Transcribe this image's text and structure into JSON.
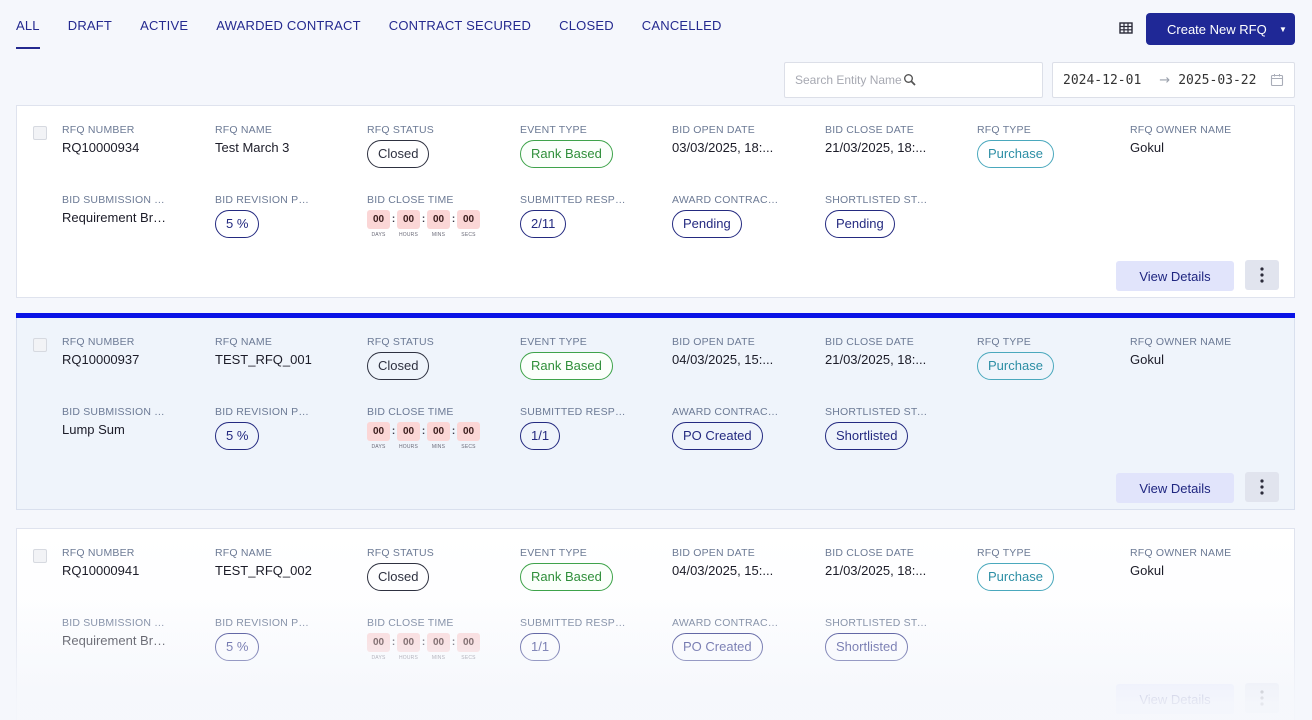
{
  "tabs": [
    {
      "label": "ALL",
      "active": true
    },
    {
      "label": "DRAFT",
      "active": false
    },
    {
      "label": "ACTIVE",
      "active": false
    },
    {
      "label": "AWARDED CONTRACT",
      "active": false
    },
    {
      "label": "CONTRACT SECURED",
      "active": false
    },
    {
      "label": "CLOSED",
      "active": false
    },
    {
      "label": "CANCELLED",
      "active": false
    }
  ],
  "toolbar": {
    "grid_icon": "table-grid-icon",
    "create_label": "Create New RFQ",
    "create_caret_icon": "caret-down-icon"
  },
  "filters": {
    "search_placeholder": "Search Entity Name",
    "search_value": "",
    "search_icon": "magnifier-icon",
    "date_from": "2024-12-01",
    "date_to": "2025-03-22",
    "date_arrow": "→",
    "calendar_icon": "calendar-icon"
  },
  "labels": {
    "rfq_number": "RFQ NUMBER",
    "rfq_name": "RFQ NAME",
    "rfq_status": "RFQ STATUS",
    "event_type": "EVENT TYPE",
    "bid_open_date": "BID OPEN DATE",
    "bid_close_date": "BID CLOSE DATE",
    "rfq_type": "RFQ TYPE",
    "rfq_owner_name": "RFQ OWNER NAME",
    "bid_submission": "BID SUBMISSION TYPE",
    "bid_revision": "BID REVISION PERCENTAGE",
    "bid_close_time": "BID CLOSE TIME",
    "submitted_responses": "SUBMITTED RESPONSES",
    "award_contract": "AWARD CONTRACT STATUS",
    "shortlisted": "SHORTLISTED STATUS",
    "timer_units": [
      "DAYS",
      "HOURS",
      "MINS",
      "SECS"
    ],
    "view_details": "View Details",
    "more_icon": "kebab-menu-icon"
  },
  "colors": {
    "primary": "#1f2896",
    "selected_bar": "#0a13e6",
    "green": "#2f8f3a",
    "teal": "#2c8ea5",
    "timer_bg": "#fbd6d6"
  },
  "rfqs": [
    {
      "rfq_number": "RQ10000934",
      "rfq_name": "Test March 3",
      "rfq_status": "Closed",
      "event_type": "Rank Based",
      "bid_open_date": "03/03/2025, 18:...",
      "bid_close_date": "21/03/2025, 18:...",
      "rfq_type": "Purchase",
      "rfq_owner_name": "Gokul",
      "bid_submission": "Requirement Bre...",
      "bid_revision": "5 %",
      "bid_close_time": [
        "00",
        "00",
        "00",
        "00"
      ],
      "submitted_responses": "2/11",
      "award_contract": "Pending",
      "shortlisted": "Pending"
    },
    {
      "rfq_number": "RQ10000937",
      "rfq_name": "TEST_RFQ_001",
      "rfq_status": "Closed",
      "event_type": "Rank Based",
      "bid_open_date": "04/03/2025, 15:...",
      "bid_close_date": "21/03/2025, 18:...",
      "rfq_type": "Purchase",
      "rfq_owner_name": "Gokul",
      "bid_submission": "Lump Sum",
      "bid_revision": "5 %",
      "bid_close_time": [
        "00",
        "00",
        "00",
        "00"
      ],
      "submitted_responses": "1/1",
      "award_contract": "PO Created",
      "shortlisted": "Shortlisted"
    },
    {
      "rfq_number": "RQ10000941",
      "rfq_name": "TEST_RFQ_002",
      "rfq_status": "Closed",
      "event_type": "Rank Based",
      "bid_open_date": "04/03/2025, 15:...",
      "bid_close_date": "21/03/2025, 18:...",
      "rfq_type": "Purchase",
      "rfq_owner_name": "Gokul",
      "bid_submission": "Requirement Bre...",
      "bid_revision": "5 %",
      "bid_close_time": [
        "00",
        "00",
        "00",
        "00"
      ],
      "submitted_responses": "1/1",
      "award_contract": "PO Created",
      "shortlisted": "Shortlisted"
    }
  ]
}
